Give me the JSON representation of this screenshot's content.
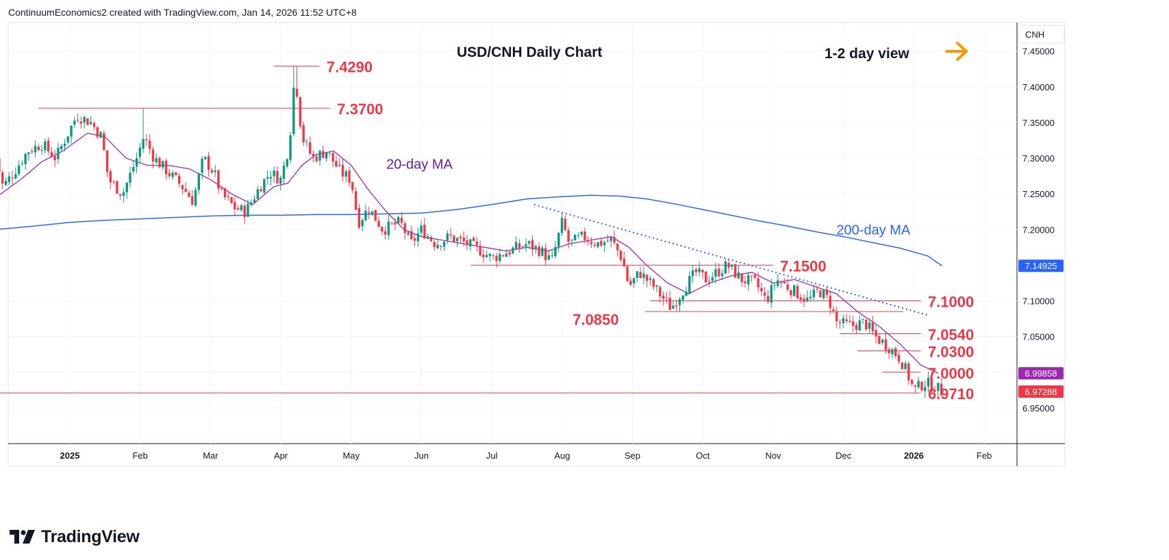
{
  "header": {
    "attribution": "ContinuumEconomics2 created with TradingView.com, Jan 14, 2026 11:52 UTC+8"
  },
  "branding": {
    "logo_text": "TradingView",
    "logo_icon": "tradingview-logo-icon"
  },
  "chart_data": {
    "type": "candlestick",
    "title": "USD/CNH Daily Chart",
    "subtitle": "1-2 day view",
    "view_arrow": "right-arrow-icon",
    "symbol_label": "CNH",
    "ylim": [
      6.9,
      7.49
    ],
    "y_ticks": [
      "7.45000",
      "7.40000",
      "7.35000",
      "7.30000",
      "7.25000",
      "7.20000",
      "7.10000",
      "7.05000",
      "7.00000",
      "6.95000"
    ],
    "x_ticks": [
      {
        "label": "2025",
        "month": 0,
        "bold": true
      },
      {
        "label": "Feb",
        "month": 1
      },
      {
        "label": "Mar",
        "month": 2
      },
      {
        "label": "Apr",
        "month": 3
      },
      {
        "label": "May",
        "month": 4
      },
      {
        "label": "Jun",
        "month": 5
      },
      {
        "label": "Jul",
        "month": 6
      },
      {
        "label": "Aug",
        "month": 7
      },
      {
        "label": "Sep",
        "month": 8
      },
      {
        "label": "Oct",
        "month": 9
      },
      {
        "label": "Nov",
        "month": 10
      },
      {
        "label": "Dec",
        "month": 11
      },
      {
        "label": "2026",
        "month": 12,
        "bold": true
      },
      {
        "label": "Feb",
        "month": 13
      }
    ],
    "price_path": [
      [
        -1.05,
        7.3
      ],
      [
        -0.95,
        7.26
      ],
      [
        -0.8,
        7.28
      ],
      [
        -0.6,
        7.31
      ],
      [
        -0.4,
        7.32
      ],
      [
        -0.2,
        7.3
      ],
      [
        -0.05,
        7.33
      ],
      [
        0.1,
        7.36
      ],
      [
        0.3,
        7.35
      ],
      [
        0.45,
        7.33
      ],
      [
        0.55,
        7.27
      ],
      [
        0.75,
        7.25
      ],
      [
        0.95,
        7.3
      ],
      [
        1.05,
        7.33
      ],
      [
        1.2,
        7.3
      ],
      [
        1.4,
        7.28
      ],
      [
        1.6,
        7.26
      ],
      [
        1.75,
        7.24
      ],
      [
        1.9,
        7.3
      ],
      [
        2.05,
        7.28
      ],
      [
        2.15,
        7.25
      ],
      [
        2.35,
        7.23
      ],
      [
        2.5,
        7.225
      ],
      [
        2.7,
        7.26
      ],
      [
        2.85,
        7.28
      ],
      [
        3.0,
        7.27
      ],
      [
        3.12,
        7.32
      ],
      [
        3.2,
        7.42
      ],
      [
        3.3,
        7.33
      ],
      [
        3.45,
        7.3
      ],
      [
        3.65,
        7.31
      ],
      [
        3.85,
        7.28
      ],
      [
        4.0,
        7.27
      ],
      [
        4.1,
        7.21
      ],
      [
        4.25,
        7.23
      ],
      [
        4.45,
        7.2
      ],
      [
        4.7,
        7.21
      ],
      [
        4.85,
        7.18
      ],
      [
        5.0,
        7.2
      ],
      [
        5.2,
        7.18
      ],
      [
        5.4,
        7.19
      ],
      [
        5.65,
        7.18
      ],
      [
        5.85,
        7.17
      ],
      [
        6.0,
        7.16
      ],
      [
        6.25,
        7.17
      ],
      [
        6.5,
        7.18
      ],
      [
        6.7,
        7.17
      ],
      [
        6.85,
        7.155
      ],
      [
        7.0,
        7.21
      ],
      [
        7.1,
        7.18
      ],
      [
        7.3,
        7.19
      ],
      [
        7.5,
        7.18
      ],
      [
        7.7,
        7.185
      ],
      [
        7.85,
        7.16
      ],
      [
        7.95,
        7.12
      ],
      [
        8.1,
        7.14
      ],
      [
        8.3,
        7.12
      ],
      [
        8.55,
        7.09
      ],
      [
        8.75,
        7.12
      ],
      [
        8.9,
        7.14
      ],
      [
        9.05,
        7.13
      ],
      [
        9.2,
        7.14
      ],
      [
        9.35,
        7.15
      ],
      [
        9.55,
        7.13
      ],
      [
        9.75,
        7.125
      ],
      [
        9.9,
        7.1
      ],
      [
        10.05,
        7.13
      ],
      [
        10.2,
        7.12
      ],
      [
        10.35,
        7.11
      ],
      [
        10.5,
        7.1
      ],
      [
        10.65,
        7.115
      ],
      [
        10.8,
        7.1
      ],
      [
        10.9,
        7.07
      ],
      [
        11.1,
        7.065
      ],
      [
        11.3,
        7.07
      ],
      [
        11.45,
        7.05
      ],
      [
        11.65,
        7.035
      ],
      [
        11.8,
        7.02
      ],
      [
        11.9,
        7.0
      ],
      [
        12.0,
        6.975
      ],
      [
        12.15,
        6.985
      ],
      [
        12.3,
        6.98
      ],
      [
        12.4,
        6.973
      ]
    ],
    "ma20_path": [
      [
        -1.05,
        7.245
      ],
      [
        -0.7,
        7.27
      ],
      [
        -0.4,
        7.295
      ],
      [
        -0.1,
        7.31
      ],
      [
        0.25,
        7.335
      ],
      [
        0.5,
        7.33
      ],
      [
        0.8,
        7.3
      ],
      [
        1.1,
        7.29
      ],
      [
        1.4,
        7.29
      ],
      [
        1.7,
        7.285
      ],
      [
        2.0,
        7.27
      ],
      [
        2.3,
        7.25
      ],
      [
        2.6,
        7.235
      ],
      [
        2.9,
        7.26
      ],
      [
        3.1,
        7.265
      ],
      [
        3.3,
        7.29
      ],
      [
        3.5,
        7.305
      ],
      [
        3.75,
        7.31
      ],
      [
        4.0,
        7.29
      ],
      [
        4.25,
        7.255
      ],
      [
        4.5,
        7.225
      ],
      [
        4.75,
        7.2
      ],
      [
        5.0,
        7.19
      ],
      [
        5.3,
        7.185
      ],
      [
        5.6,
        7.18
      ],
      [
        5.9,
        7.175
      ],
      [
        6.2,
        7.17
      ],
      [
        6.5,
        7.175
      ],
      [
        6.8,
        7.17
      ],
      [
        7.1,
        7.18
      ],
      [
        7.4,
        7.185
      ],
      [
        7.7,
        7.19
      ],
      [
        7.95,
        7.175
      ],
      [
        8.2,
        7.15
      ],
      [
        8.5,
        7.125
      ],
      [
        8.8,
        7.11
      ],
      [
        9.1,
        7.125
      ],
      [
        9.4,
        7.135
      ],
      [
        9.7,
        7.14
      ],
      [
        10.0,
        7.125
      ],
      [
        10.3,
        7.13
      ],
      [
        10.6,
        7.12
      ],
      [
        10.9,
        7.11
      ],
      [
        11.2,
        7.085
      ],
      [
        11.5,
        7.065
      ],
      [
        11.8,
        7.04
      ],
      [
        12.1,
        7.01
      ],
      [
        12.35,
        6.9985
      ]
    ],
    "ma200_path": [
      [
        -1.05,
        7.2
      ],
      [
        -0.5,
        7.205
      ],
      [
        0.0,
        7.21
      ],
      [
        0.5,
        7.213
      ],
      [
        1.0,
        7.215
      ],
      [
        1.5,
        7.217
      ],
      [
        2.0,
        7.219
      ],
      [
        2.5,
        7.22
      ],
      [
        3.0,
        7.22
      ],
      [
        3.5,
        7.221
      ],
      [
        4.0,
        7.221
      ],
      [
        4.5,
        7.222
      ],
      [
        5.0,
        7.223
      ],
      [
        5.5,
        7.228
      ],
      [
        6.0,
        7.235
      ],
      [
        6.5,
        7.243
      ],
      [
        7.0,
        7.246
      ],
      [
        7.4,
        7.248
      ],
      [
        7.8,
        7.247
      ],
      [
        8.2,
        7.243
      ],
      [
        8.6,
        7.236
      ],
      [
        9.0,
        7.228
      ],
      [
        9.4,
        7.22
      ],
      [
        9.8,
        7.212
      ],
      [
        10.2,
        7.205
      ],
      [
        10.6,
        7.197
      ],
      [
        11.0,
        7.19
      ],
      [
        11.4,
        7.182
      ],
      [
        11.8,
        7.174
      ],
      [
        12.2,
        7.163
      ],
      [
        12.4,
        7.149
      ]
    ],
    "ma_labels": [
      {
        "text": "20-day MA",
        "x": 4.5,
        "y": 7.285,
        "color": "#6a1b9a"
      },
      {
        "text": "200-day MA",
        "x": 10.9,
        "y": 7.193,
        "color": "#2962ff"
      }
    ],
    "trendline": {
      "points": [
        [
          6.6,
          7.235
        ],
        [
          12.2,
          7.08
        ]
      ],
      "color": "#2962ff",
      "style": "dotted"
    },
    "levels": [
      {
        "label": "7.4290",
        "price": 7.429,
        "x_start": 2.9,
        "x_end": 3.55,
        "label_x": 3.65
      },
      {
        "label": "7.3700",
        "price": 7.37,
        "x_start": -0.45,
        "x_end": 3.7,
        "label_x": 3.8
      },
      {
        "label": "7.1500",
        "price": 7.15,
        "x_start": 5.7,
        "x_end": 10.0,
        "label_x": 10.1
      },
      {
        "label": "7.1000",
        "price": 7.1,
        "x_start": 8.25,
        "x_end": 12.1,
        "label_x": 12.2
      },
      {
        "label": "7.0850",
        "price": 7.085,
        "x_start": 8.18,
        "x_end": 11.85,
        "label_x": 7.15,
        "label_y": 7.075
      },
      {
        "label": "7.0540",
        "price": 7.054,
        "x_start": 10.95,
        "x_end": 12.1,
        "label_x": 12.2
      },
      {
        "label": "7.0300",
        "price": 7.03,
        "x_start": 11.2,
        "x_end": 12.1,
        "label_x": 12.2
      },
      {
        "label": "7.0000",
        "price": 7.0,
        "x_start": 11.55,
        "x_end": 12.1,
        "label_x": 12.2
      },
      {
        "label": "6.9710",
        "price": 6.971,
        "x_start": -1.05,
        "x_end": 12.1,
        "label_x": 12.2
      }
    ],
    "price_badges": [
      {
        "text": "7.14925",
        "price": 7.14925,
        "color": "#2962ff"
      },
      {
        "text": "6.99858",
        "price": 6.99858,
        "color": "#9c27b0"
      },
      {
        "text": "6.97288",
        "price": 6.97288,
        "color": "#f23645"
      }
    ],
    "colors": {
      "up": "#089981",
      "down": "#f23645",
      "level": "#f23645",
      "ma20": "#9c27b0",
      "ma200": "#2962ff",
      "arrow": "#ff9800"
    }
  }
}
